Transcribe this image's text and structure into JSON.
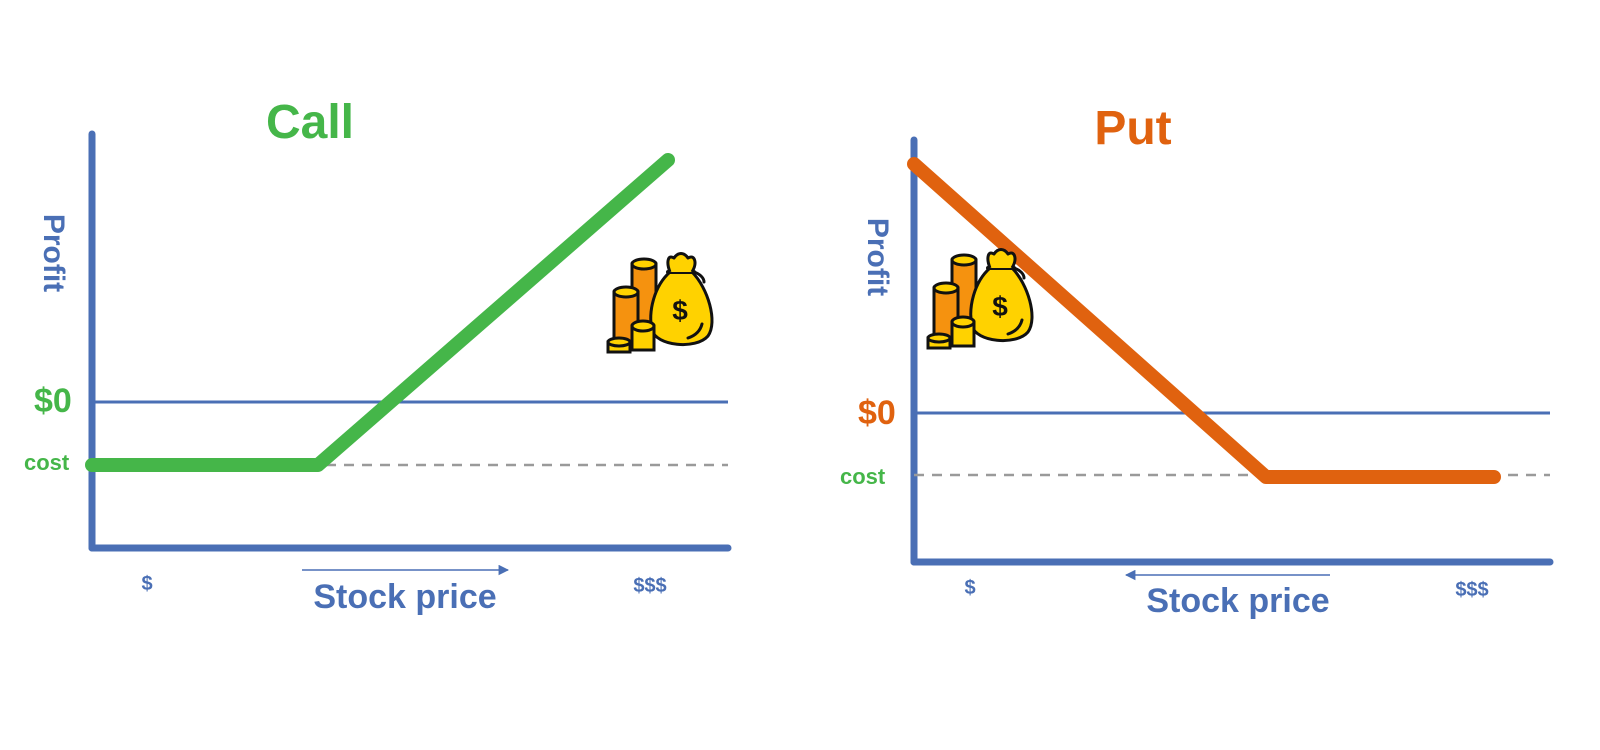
{
  "colors": {
    "axis": "#4a6fb5",
    "call": "#45b649",
    "put": "#e0620f",
    "cost_line": "#9a9a9a",
    "bag": "#ffd200",
    "coin_orange": "#f5920f",
    "coin_yellow": "#ffd200",
    "outline": "#111111"
  },
  "panels": [
    {
      "id": "call",
      "title": "Call",
      "y_label": "Profit",
      "zero_label": "$0",
      "cost_label": "cost",
      "x_label": "Stock price",
      "x_tick_low": "$",
      "x_tick_high": "$$$",
      "arrow_direction": "right",
      "icon": "money-bag-coins-icon"
    },
    {
      "id": "put",
      "title": "Put",
      "y_label": "Profit",
      "zero_label": "$0",
      "cost_label": "cost",
      "x_label": "Stock price",
      "x_tick_low": "$",
      "x_tick_high": "$$$",
      "arrow_direction": "left",
      "icon": "money-bag-coins-icon"
    }
  ]
}
